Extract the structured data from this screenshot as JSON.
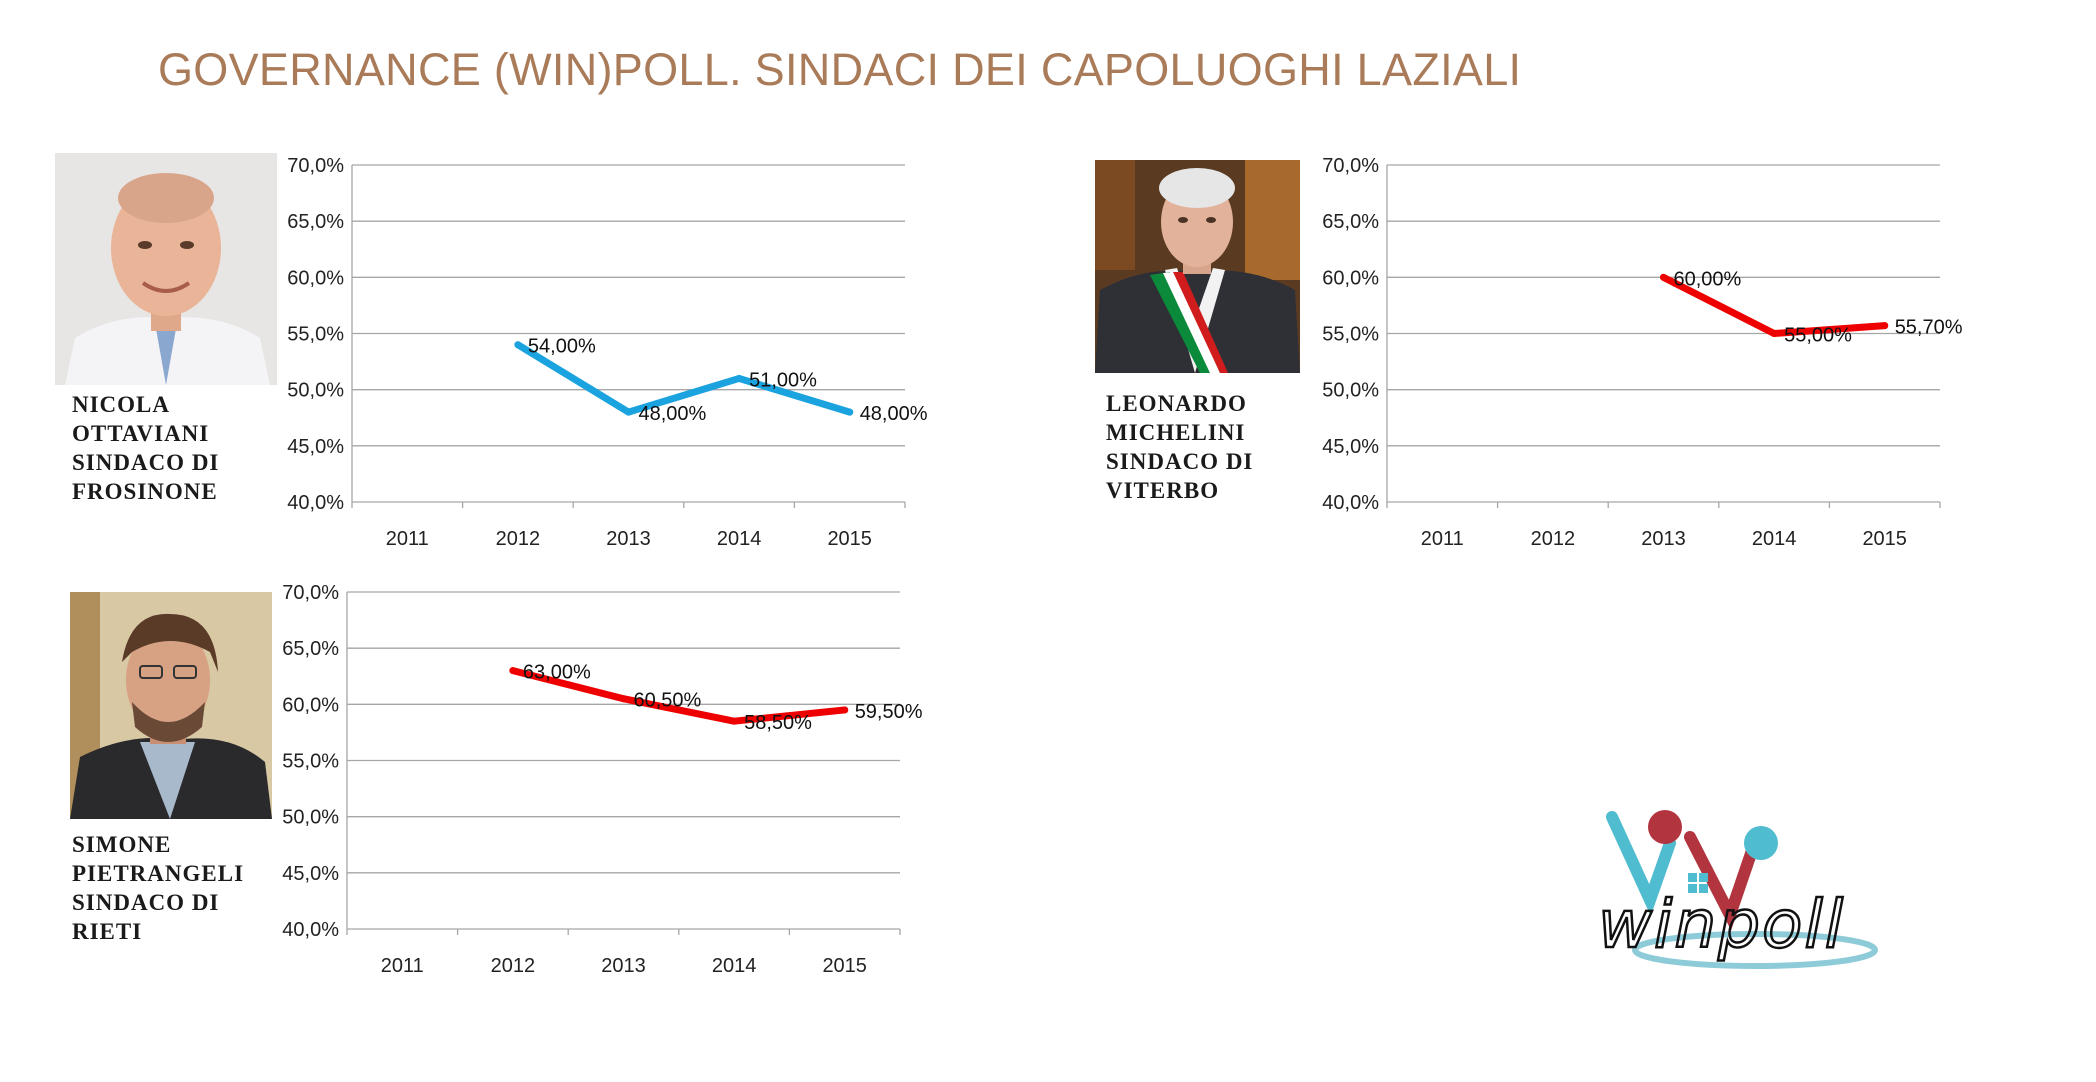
{
  "title": "GOVERNANCE (WIN)POLL. SINDACI DEI CAPOLUOGHI LAZIALI",
  "logo_text": "winpoll",
  "mayors": [
    {
      "id": "frosinone",
      "caption_lines": [
        "NICOLA",
        "OTTAVIANI",
        "SINDACO DI",
        "FROSINONE"
      ],
      "photo_alt": "mayor-ottaviani-photo"
    },
    {
      "id": "viterbo",
      "caption_lines": [
        "LEONARDO",
        "MICHELINI",
        "SINDACO DI",
        "VITERBO"
      ],
      "photo_alt": "mayor-michelini-photo"
    },
    {
      "id": "rieti",
      "caption_lines": [
        "SIMONE",
        "PIETRANGELI",
        "SINDACO DI",
        "RIETI"
      ],
      "photo_alt": "mayor-pietrangeli-photo"
    }
  ],
  "chart_data": [
    {
      "type": "line",
      "categories": [
        "2011",
        "2012",
        "2013",
        "2014",
        "2015"
      ],
      "y_ticks": [
        "70,0%",
        "65,0%",
        "60,0%",
        "55,0%",
        "50,0%",
        "45,0%",
        "40,0%"
      ],
      "ylim": [
        40,
        70
      ],
      "grid": true,
      "series": [
        {
          "color": "#1ba3e0",
          "values": [
            null,
            54,
            48,
            51,
            48
          ],
          "labels": [
            null,
            "54,00%",
            "48,00%",
            "51,00%",
            "48,00%"
          ]
        }
      ]
    },
    {
      "type": "line",
      "categories": [
        "2011",
        "2012",
        "2013",
        "2014",
        "2015"
      ],
      "y_ticks": [
        "70,0%",
        "65,0%",
        "60,0%",
        "55,0%",
        "50,0%",
        "45,0%",
        "40,0%"
      ],
      "ylim": [
        40,
        70
      ],
      "grid": true,
      "series": [
        {
          "color": "#ee0000",
          "values": [
            null,
            null,
            60,
            55,
            55.7
          ],
          "labels": [
            null,
            null,
            "60,00%",
            "55,00%",
            "55,70%"
          ]
        }
      ]
    },
    {
      "type": "line",
      "categories": [
        "2011",
        "2012",
        "2013",
        "2014",
        "2015"
      ],
      "y_ticks": [
        "70,0%",
        "65,0%",
        "60,0%",
        "55,0%",
        "50,0%",
        "45,0%",
        "40,0%"
      ],
      "ylim": [
        40,
        70
      ],
      "grid": true,
      "series": [
        {
          "color": "#ee0000",
          "values": [
            null,
            63,
            60.5,
            58.5,
            59.5
          ],
          "labels": [
            null,
            "63,00%",
            "60,50%",
            "58,50%",
            "59,50%"
          ]
        }
      ]
    }
  ]
}
